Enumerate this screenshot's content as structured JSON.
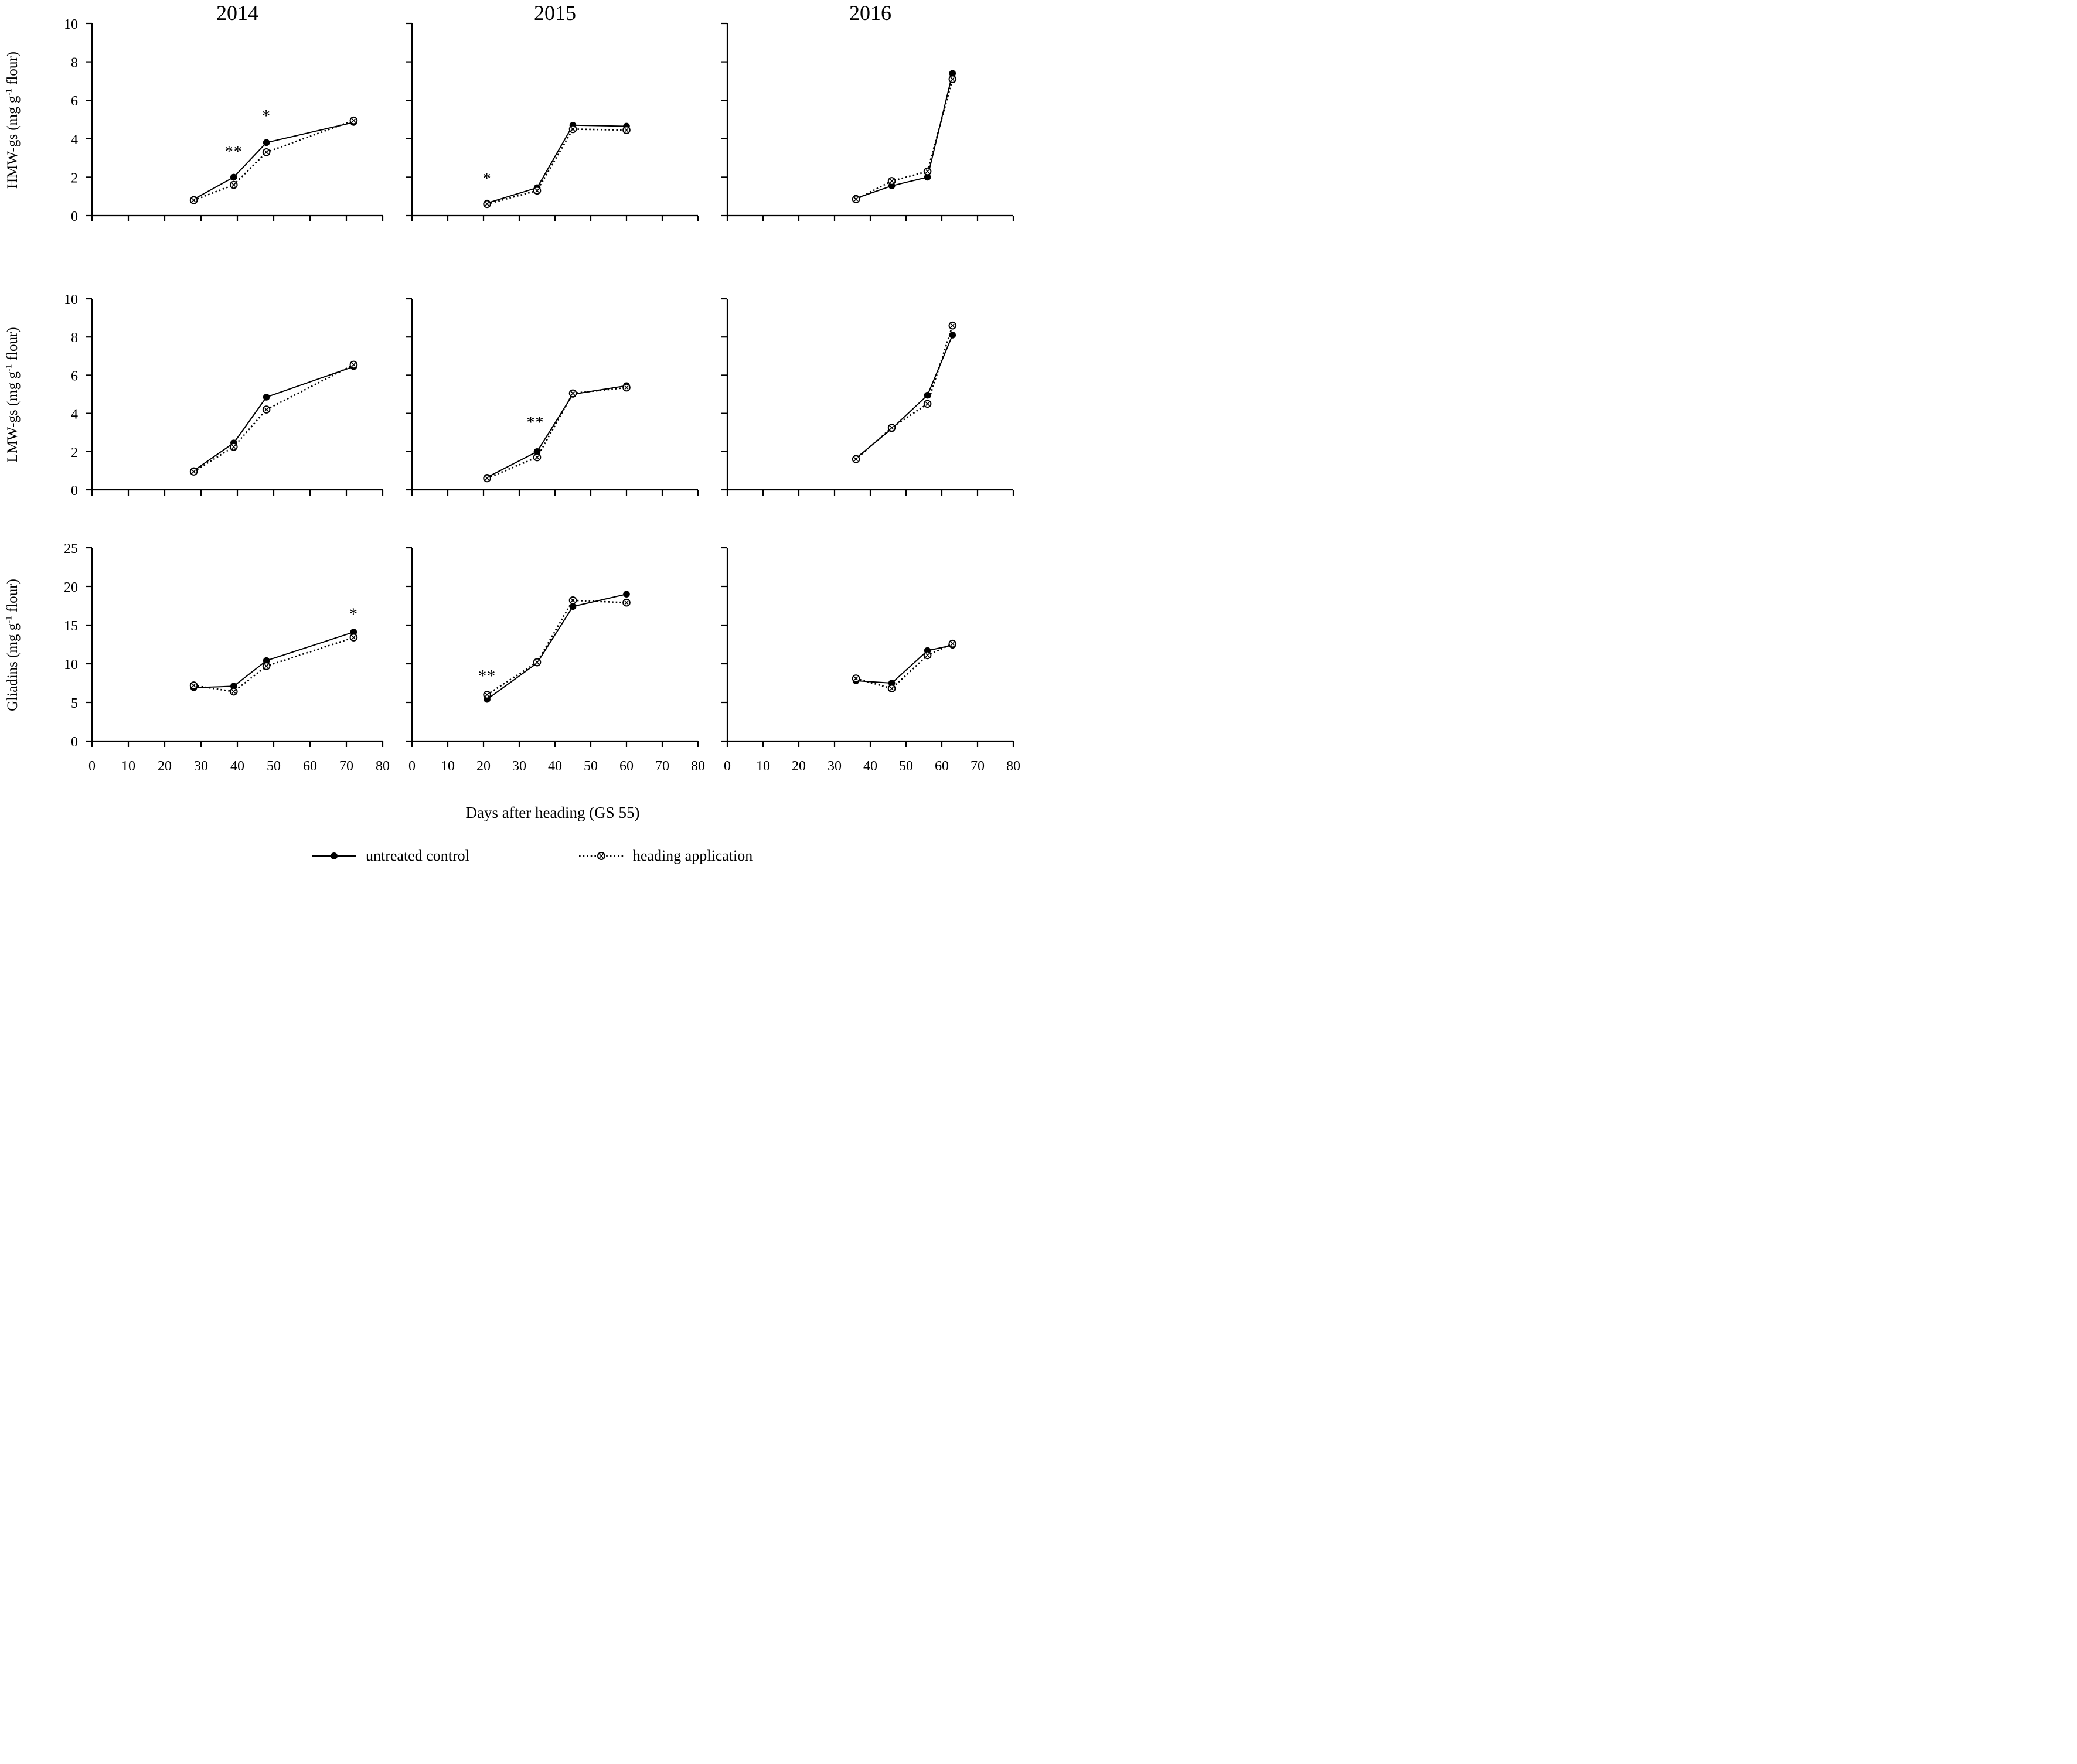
{
  "figure": {
    "background": "#ffffff",
    "foreground": "#000000",
    "x_axis_title": "Days after heading (GS 55)",
    "years": [
      "2014",
      "2015",
      "2016"
    ],
    "rows": [
      {
        "key": "hmw-gs",
        "label_pre": "HMW-gs (mg g",
        "label_sup": "-1",
        "label_post": " flour)"
      },
      {
        "key": "lmw-gs",
        "label_pre": "LMW-gs (mg g",
        "label_sup": "-1",
        "label_post": " flour)"
      },
      {
        "key": "gliadins",
        "label_pre": "Gliadins (mg g",
        "label_sup": "-1",
        "label_post": " flour)"
      }
    ],
    "legend": [
      {
        "key": "untreated-control",
        "label": "untreated control",
        "marker": "filled-circle",
        "line_style": "solid"
      },
      {
        "key": "heading-application",
        "label": "heading application",
        "marker": "circle-x",
        "line_style": "dotted"
      }
    ]
  },
  "chart_data": [
    {
      "type": "line",
      "row": "HMW-gs",
      "year": "2014",
      "xlabel": "Days after heading (GS 55)",
      "ylabel": "HMW-gs (mg g⁻¹ flour)",
      "xlim": [
        0,
        80
      ],
      "xticks": [
        0,
        10,
        20,
        30,
        40,
        50,
        60,
        70,
        80
      ],
      "ylim": [
        0,
        10
      ],
      "yticks": [
        0,
        2,
        4,
        6,
        8,
        10
      ],
      "series": [
        {
          "name": "untreated control",
          "x": [
            28,
            39,
            48,
            72
          ],
          "y": [
            0.85,
            2.0,
            3.8,
            4.85
          ]
        },
        {
          "name": "heading application",
          "x": [
            28,
            39,
            48,
            72
          ],
          "y": [
            0.8,
            1.6,
            3.3,
            4.95
          ]
        }
      ],
      "annotations": [
        {
          "text": "**",
          "x": 39,
          "y": 3.45
        },
        {
          "text": "*",
          "x": 48,
          "y": 5.3
        }
      ]
    },
    {
      "type": "line",
      "row": "HMW-gs",
      "year": "2015",
      "xlabel": "Days after heading (GS 55)",
      "ylabel": "HMW-gs (mg g⁻¹ flour)",
      "xlim": [
        0,
        80
      ],
      "xticks": [
        0,
        10,
        20,
        30,
        40,
        50,
        60,
        70,
        80
      ],
      "ylim": [
        0,
        10
      ],
      "yticks": [
        0,
        2,
        4,
        6,
        8,
        10
      ],
      "series": [
        {
          "name": "untreated control",
          "x": [
            21,
            35,
            45,
            60
          ],
          "y": [
            0.65,
            1.45,
            4.7,
            4.65
          ]
        },
        {
          "name": "heading application",
          "x": [
            21,
            35,
            45,
            60
          ],
          "y": [
            0.6,
            1.3,
            4.5,
            4.45
          ]
        }
      ],
      "annotations": [
        {
          "text": "*",
          "x": 21,
          "y": 2.05
        }
      ]
    },
    {
      "type": "line",
      "row": "HMW-gs",
      "year": "2016",
      "xlabel": "Days after heading (GS 55)",
      "ylabel": "HMW-gs (mg g⁻¹ flour)",
      "xlim": [
        0,
        80
      ],
      "xticks": [
        0,
        10,
        20,
        30,
        40,
        50,
        60,
        70,
        80
      ],
      "ylim": [
        0,
        10
      ],
      "yticks": [
        0,
        2,
        4,
        6,
        8,
        10
      ],
      "series": [
        {
          "name": "untreated control",
          "x": [
            36,
            46,
            56,
            63
          ],
          "y": [
            0.9,
            1.55,
            2.0,
            7.4
          ]
        },
        {
          "name": "heading application",
          "x": [
            36,
            46,
            56,
            63
          ],
          "y": [
            0.85,
            1.8,
            2.3,
            7.1
          ]
        }
      ],
      "annotations": []
    },
    {
      "type": "line",
      "row": "LMW-gs",
      "year": "2014",
      "xlabel": "Days after heading (GS 55)",
      "ylabel": "LMW-gs (mg g⁻¹ flour)",
      "xlim": [
        0,
        80
      ],
      "xticks": [
        0,
        10,
        20,
        30,
        40,
        50,
        60,
        70,
        80
      ],
      "ylim": [
        0,
        10
      ],
      "yticks": [
        0,
        2,
        4,
        6,
        8,
        10
      ],
      "series": [
        {
          "name": "untreated control",
          "x": [
            28,
            39,
            48,
            72
          ],
          "y": [
            1.0,
            2.45,
            4.85,
            6.45
          ]
        },
        {
          "name": "heading application",
          "x": [
            28,
            39,
            48,
            72
          ],
          "y": [
            0.95,
            2.25,
            4.2,
            6.55
          ]
        }
      ],
      "annotations": []
    },
    {
      "type": "line",
      "row": "LMW-gs",
      "year": "2015",
      "xlabel": "Days after heading (GS 55)",
      "ylabel": "LMW-gs (mg g⁻¹ flour)",
      "xlim": [
        0,
        80
      ],
      "xticks": [
        0,
        10,
        20,
        30,
        40,
        50,
        60,
        70,
        80
      ],
      "ylim": [
        0,
        10
      ],
      "yticks": [
        0,
        2,
        4,
        6,
        8,
        10
      ],
      "series": [
        {
          "name": "untreated control",
          "x": [
            21,
            35,
            45,
            60
          ],
          "y": [
            0.65,
            2.0,
            5.0,
            5.45
          ]
        },
        {
          "name": "heading application",
          "x": [
            21,
            35,
            45,
            60
          ],
          "y": [
            0.6,
            1.7,
            5.05,
            5.35
          ]
        }
      ],
      "annotations": [
        {
          "text": "**",
          "x": 34.5,
          "y": 3.65
        }
      ]
    },
    {
      "type": "line",
      "row": "LMW-gs",
      "year": "2016",
      "xlabel": "Days after heading (GS 55)",
      "ylabel": "LMW-gs (mg g⁻¹ flour)",
      "xlim": [
        0,
        80
      ],
      "xticks": [
        0,
        10,
        20,
        30,
        40,
        50,
        60,
        70,
        80
      ],
      "ylim": [
        0,
        10
      ],
      "yticks": [
        0,
        2,
        4,
        6,
        8,
        10
      ],
      "series": [
        {
          "name": "untreated control",
          "x": [
            36,
            46,
            56,
            63
          ],
          "y": [
            1.65,
            3.2,
            4.95,
            8.1
          ]
        },
        {
          "name": "heading application",
          "x": [
            36,
            46,
            56,
            63
          ],
          "y": [
            1.6,
            3.25,
            4.5,
            8.6
          ]
        }
      ],
      "annotations": []
    },
    {
      "type": "line",
      "row": "Gliadins",
      "year": "2014",
      "xlabel": "Days after heading (GS 55)",
      "ylabel": "Gliadins (mg g⁻¹ flour)",
      "xlim": [
        0,
        80
      ],
      "xticks": [
        0,
        10,
        20,
        30,
        40,
        50,
        60,
        70,
        80
      ],
      "ylim": [
        0,
        25
      ],
      "yticks": [
        0,
        5,
        10,
        15,
        20,
        25
      ],
      "series": [
        {
          "name": "untreated control",
          "x": [
            28,
            39,
            48,
            72
          ],
          "y": [
            6.9,
            7.1,
            10.4,
            14.1
          ]
        },
        {
          "name": "heading application",
          "x": [
            28,
            39,
            48,
            72
          ],
          "y": [
            7.2,
            6.4,
            9.7,
            13.4
          ]
        }
      ],
      "annotations": [
        {
          "text": "*",
          "x": 72,
          "y": 16.7
        }
      ]
    },
    {
      "type": "line",
      "row": "Gliadins",
      "year": "2015",
      "xlabel": "Days after heading (GS 55)",
      "ylabel": "Gliadins (mg g⁻¹ flour)",
      "xlim": [
        0,
        80
      ],
      "xticks": [
        0,
        10,
        20,
        30,
        40,
        50,
        60,
        70,
        80
      ],
      "ylim": [
        0,
        25
      ],
      "yticks": [
        0,
        5,
        10,
        15,
        20,
        25
      ],
      "series": [
        {
          "name": "untreated control",
          "x": [
            21,
            35,
            45,
            60
          ],
          "y": [
            5.4,
            10.1,
            17.4,
            19.0
          ]
        },
        {
          "name": "heading application",
          "x": [
            21,
            35,
            45,
            60
          ],
          "y": [
            6.0,
            10.2,
            18.2,
            17.9
          ]
        }
      ],
      "annotations": [
        {
          "text": "**",
          "x": 21,
          "y": 8.7
        }
      ]
    },
    {
      "type": "line",
      "row": "Gliadins",
      "year": "2016",
      "xlabel": "Days after heading (GS 55)",
      "ylabel": "Gliadins (mg g⁻¹ flour)",
      "xlim": [
        0,
        80
      ],
      "xticks": [
        0,
        10,
        20,
        30,
        40,
        50,
        60,
        70,
        80
      ],
      "ylim": [
        0,
        25
      ],
      "yticks": [
        0,
        5,
        10,
        15,
        20,
        25
      ],
      "series": [
        {
          "name": "untreated control",
          "x": [
            36,
            46,
            56,
            63
          ],
          "y": [
            7.8,
            7.5,
            11.7,
            12.4
          ]
        },
        {
          "name": "heading application",
          "x": [
            36,
            46,
            56,
            63
          ],
          "y": [
            8.1,
            6.8,
            11.1,
            12.6
          ]
        }
      ],
      "annotations": []
    }
  ]
}
